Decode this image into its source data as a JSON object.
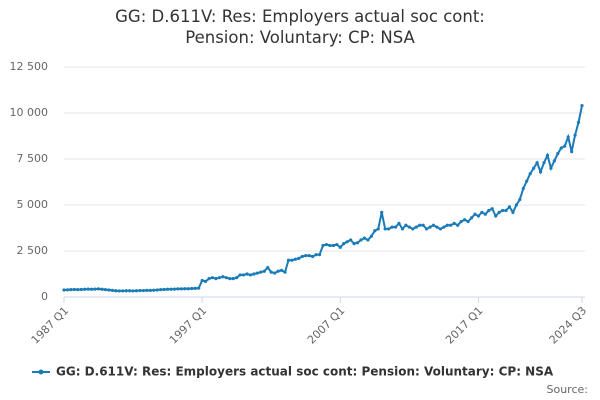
{
  "chart_data": {
    "type": "line",
    "title": "GG: D.611V: Res: Employers actual soc cont: Pension: Voluntary: CP: NSA",
    "source": "Source:",
    "categories": [
      "1987 Q1",
      null,
      null,
      null,
      null,
      null,
      null,
      null,
      null,
      null,
      null,
      null,
      null,
      null,
      null,
      null,
      null,
      null,
      null,
      null,
      null,
      null,
      null,
      null,
      null,
      null,
      null,
      null,
      null,
      null,
      null,
      null,
      null,
      null,
      null,
      null,
      null,
      null,
      null,
      null,
      "1997 Q1",
      null,
      null,
      null,
      null,
      null,
      null,
      null,
      null,
      null,
      null,
      null,
      null,
      null,
      null,
      null,
      null,
      null,
      null,
      null,
      null,
      null,
      null,
      null,
      null,
      null,
      null,
      null,
      null,
      null,
      null,
      null,
      null,
      null,
      null,
      null,
      null,
      null,
      null,
      null,
      "2007 Q1",
      null,
      null,
      null,
      null,
      null,
      null,
      null,
      null,
      null,
      null,
      null,
      null,
      null,
      null,
      null,
      null,
      null,
      null,
      null,
      null,
      null,
      null,
      null,
      null,
      null,
      null,
      null,
      null,
      null,
      null,
      null,
      null,
      null,
      null,
      null,
      null,
      null,
      null,
      null,
      "2017 Q1",
      null,
      null,
      null,
      null,
      null,
      null,
      null,
      null,
      null,
      null,
      null,
      null,
      null,
      null,
      null,
      null,
      null,
      null,
      null,
      null,
      null,
      null,
      null,
      null,
      null,
      null,
      null,
      null,
      null,
      "2024 Q3"
    ],
    "series": [
      {
        "name": "GG: D.611V: Res: Employers actual soc cont: Pension: Voluntary: CP: NSA",
        "color": "#1a7bb9",
        "values": [
          380,
          390,
          400,
          410,
          400,
          410,
          420,
          430,
          420,
          430,
          440,
          420,
          400,
          380,
          360,
          340,
          330,
          330,
          340,
          340,
          330,
          340,
          350,
          350,
          360,
          360,
          370,
          380,
          400,
          410,
          420,
          420,
          430,
          440,
          440,
          450,
          450,
          460,
          470,
          480,
          900,
          850,
          1000,
          1050,
          1000,
          1050,
          1100,
          1050,
          1000,
          1000,
          1050,
          1200,
          1200,
          1250,
          1200,
          1250,
          1300,
          1350,
          1400,
          1600,
          1350,
          1300,
          1400,
          1450,
          1350,
          2000,
          2000,
          2050,
          2100,
          2200,
          2250,
          2250,
          2200,
          2300,
          2300,
          2800,
          2850,
          2800,
          2800,
          2850,
          2700,
          2900,
          3000,
          3100,
          2900,
          2950,
          3100,
          3200,
          3100,
          3300,
          3600,
          3700,
          4600,
          3700,
          3700,
          3800,
          3800,
          4000,
          3700,
          3900,
          3800,
          3700,
          3800,
          3900,
          3900,
          3700,
          3800,
          3900,
          3800,
          3700,
          3800,
          3900,
          3900,
          4000,
          3900,
          4100,
          4200,
          4100,
          4300,
          4500,
          4400,
          4600,
          4500,
          4700,
          4800,
          4400,
          4600,
          4700,
          4700,
          4900,
          4600,
          5000,
          5300,
          5900,
          6300,
          6700,
          7000,
          7300,
          6800,
          7300,
          7700,
          7000,
          7400,
          7800,
          8100,
          8200,
          8700,
          7900,
          8800,
          9500,
          10400
        ]
      }
    ],
    "ylim": [
      0,
      12500
    ],
    "yticks": [
      0,
      {
        "value": 2500,
        "label": "2 500"
      },
      {
        "value": 5000,
        "label": "5 000"
      },
      {
        "value": 7500,
        "label": "7 500"
      },
      {
        "value": 10000,
        "label": "10 000"
      },
      {
        "value": 12500,
        "label": "12 500"
      }
    ],
    "grid": true
  }
}
